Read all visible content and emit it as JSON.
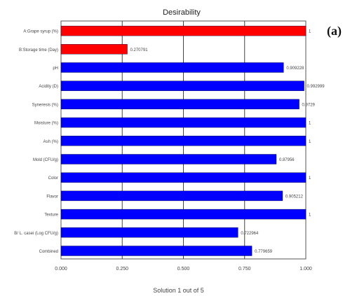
{
  "panel_label": "(a)",
  "footer": "Solution 1 out of 5",
  "colors": {
    "red": "#ff0000",
    "blue": "#0000ff",
    "frame": "#555555",
    "grid": "#444444"
  },
  "chart_data": {
    "type": "bar",
    "orientation": "horizontal",
    "title": "Desirability",
    "xlim": [
      0,
      1
    ],
    "xticks": [
      "0.000",
      "0.250",
      "0.500",
      "0.750",
      "1.000"
    ],
    "bars": [
      {
        "label": "A:Grape syrup (%)",
        "value": 1,
        "value_label": "1",
        "color": "red"
      },
      {
        "label": "B:Storage time (Day)",
        "value": 0.270791,
        "value_label": "0.270791",
        "color": "red"
      },
      {
        "label": "pH",
        "value": 0.909228,
        "value_label": "0.909228",
        "color": "blue"
      },
      {
        "label": "Acidity (D)",
        "value": 0.992999,
        "value_label": "0.992999",
        "color": "blue"
      },
      {
        "label": "Syneresis (%)",
        "value": 0.9729,
        "value_label": "0.9729",
        "color": "blue"
      },
      {
        "label": "Moisture (%)",
        "value": 1,
        "value_label": "1",
        "color": "blue"
      },
      {
        "label": "Ash (%)",
        "value": 1,
        "value_label": "1",
        "color": "blue"
      },
      {
        "label": "Mold (CFU/g)",
        "value": 0.87956,
        "value_label": "0.87956",
        "color": "blue"
      },
      {
        "label": "Color",
        "value": 1,
        "value_label": "1",
        "color": "blue"
      },
      {
        "label": "Flavor",
        "value": 0.905212,
        "value_label": "0.905212",
        "color": "blue"
      },
      {
        "label": "Texture",
        "value": 1,
        "value_label": "1",
        "color": "blue"
      },
      {
        "label": "B/ L. casei (Log CFU/g)",
        "value": 0.722964,
        "value_label": "0.722964",
        "color": "blue"
      },
      {
        "label": "Combined",
        "value": 0.779659,
        "value_label": "0.779659",
        "color": "blue"
      }
    ]
  }
}
